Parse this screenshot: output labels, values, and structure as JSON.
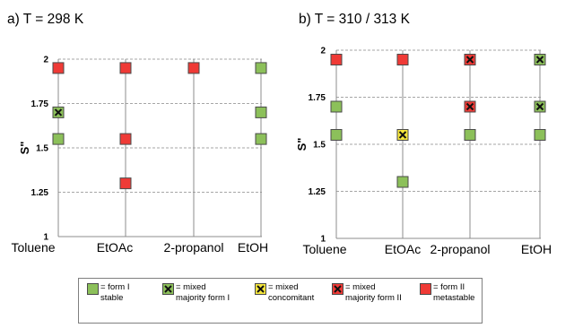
{
  "colors": {
    "form_I": "#8cc05a",
    "mixed_majority_form_I": "#8cc05a",
    "mixed_concomitant": "#f5e63c",
    "mixed_majority_form_II": "#ef3a36",
    "form_II": "#ef3a36",
    "grid": "#a6a6a6",
    "marker_border": "#4a4a4a"
  },
  "chart_data": [
    {
      "type": "scatter",
      "title": "a) T = 298 K",
      "ylabel": "S\"",
      "xlabel": "",
      "categories": [
        "Toluene",
        "EtOAc",
        "2-propanol",
        "EtOH"
      ],
      "ylim": [
        1,
        2
      ],
      "yticks": [
        "1",
        "1.25",
        "1.5",
        "1.75",
        "2"
      ],
      "grid": true,
      "points": [
        {
          "category": "Toluene",
          "y": 1.95,
          "type": "form_II"
        },
        {
          "category": "Toluene",
          "y": 1.7,
          "type": "mixed_majority_form_I"
        },
        {
          "category": "Toluene",
          "y": 1.55,
          "type": "form_I"
        },
        {
          "category": "EtOAc",
          "y": 1.95,
          "type": "form_II"
        },
        {
          "category": "EtOAc",
          "y": 1.55,
          "type": "form_II"
        },
        {
          "category": "EtOAc",
          "y": 1.3,
          "type": "form_II"
        },
        {
          "category": "2-propanol",
          "y": 1.95,
          "type": "form_II"
        },
        {
          "category": "EtOH",
          "y": 1.95,
          "type": "form_I"
        },
        {
          "category": "EtOH",
          "y": 1.7,
          "type": "form_I"
        },
        {
          "category": "EtOH",
          "y": 1.55,
          "type": "form_I"
        }
      ]
    },
    {
      "type": "scatter",
      "title": "b) T = 310 / 313 K",
      "ylabel": "S\"",
      "xlabel": "",
      "categories": [
        "Toluene",
        "EtOAc",
        "2-propanol",
        "EtOH"
      ],
      "ylim": [
        1,
        2
      ],
      "yticks": [
        "1",
        "1.25",
        "1.5",
        "1.75",
        "2"
      ],
      "grid": true,
      "points": [
        {
          "category": "Toluene",
          "y": 1.95,
          "type": "form_II"
        },
        {
          "category": "Toluene",
          "y": 1.7,
          "type": "form_I"
        },
        {
          "category": "Toluene",
          "y": 1.55,
          "type": "form_I"
        },
        {
          "category": "EtOAc",
          "y": 1.95,
          "type": "form_II"
        },
        {
          "category": "EtOAc",
          "y": 1.55,
          "type": "mixed_concomitant"
        },
        {
          "category": "EtOAc",
          "y": 1.3,
          "type": "form_I"
        },
        {
          "category": "2-propanol",
          "y": 1.95,
          "type": "mixed_majority_form_II"
        },
        {
          "category": "2-propanol",
          "y": 1.7,
          "type": "mixed_majority_form_II"
        },
        {
          "category": "2-propanol",
          "y": 1.55,
          "type": "form_I"
        },
        {
          "category": "EtOH",
          "y": 1.95,
          "type": "mixed_majority_form_I"
        },
        {
          "category": "EtOH",
          "y": 1.7,
          "type": "mixed_majority_form_I"
        },
        {
          "category": "EtOH",
          "y": 1.55,
          "type": "form_I"
        }
      ]
    }
  ],
  "legend": [
    {
      "key": "form_I",
      "line1": "= form I",
      "line2": "stable",
      "cross": false
    },
    {
      "key": "mixed_majority_form_I",
      "line1": "= mixed",
      "line2": "majority form I",
      "cross": true
    },
    {
      "key": "mixed_concomitant",
      "line1": "= mixed",
      "line2": "concomitant",
      "cross": true
    },
    {
      "key": "mixed_majority_form_II",
      "line1": "= mixed",
      "line2": "majority form II",
      "cross": true
    },
    {
      "key": "form_II",
      "line1": "= form II",
      "line2": "metastable",
      "cross": false
    }
  ]
}
